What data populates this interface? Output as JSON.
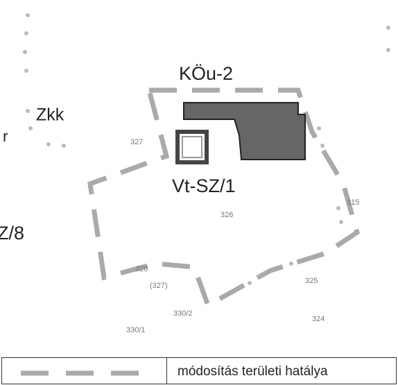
{
  "zones": [
    "KÖu-2",
    "Zkk",
    "Vt-SZ/1",
    "Z/8",
    "r"
  ],
  "lots": [
    "327",
    "326",
    "315",
    "328",
    "(327)",
    "325",
    "330/2",
    "324",
    "330/1"
  ],
  "legend": {
    "label": "módosítás területi hatálya"
  }
}
